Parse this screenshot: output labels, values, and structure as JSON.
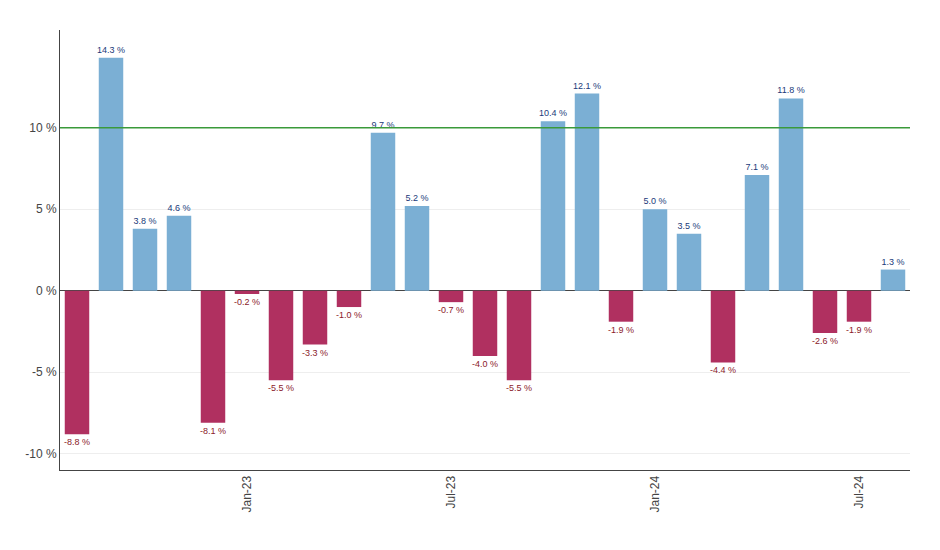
{
  "chart_data": {
    "type": "bar",
    "categories": [
      null,
      null,
      null,
      null,
      null,
      "Jan-23",
      null,
      null,
      null,
      null,
      null,
      "Jul-23",
      null,
      null,
      null,
      null,
      null,
      "Jan-24",
      null,
      null,
      null,
      null,
      null,
      "Jul-24",
      null
    ],
    "values": [
      -8.8,
      14.3,
      3.8,
      4.6,
      -8.1,
      -0.2,
      -5.5,
      -3.3,
      -1.0,
      9.7,
      5.2,
      -0.7,
      -4.0,
      -5.5,
      10.4,
      12.1,
      -1.9,
      5.0,
      3.5,
      -4.4,
      7.1,
      11.8,
      -2.6,
      -1.9,
      1.3
    ],
    "value_labels": [
      "-8.8 %",
      "14.3 %",
      "3.8 %",
      "4.6 %",
      "-8.1 %",
      "-0.2 %",
      "-5.5 %",
      "-3.3 %",
      "-1.0 %",
      "9.7 %",
      "5.2 %",
      "-0.7 %",
      "-4.0 %",
      "-5.5 %",
      "10.4 %",
      "12.1 %",
      "-1.9 %",
      "5.0 %",
      "3.5 %",
      "-4.4 %",
      "7.1 %",
      "11.8 %",
      "-2.6 %",
      "-1.9 %",
      "1.3 %"
    ],
    "colors": [
      "#b03060",
      "#7bafd4",
      "#7bafd4",
      "#7bafd4",
      "#b03060",
      "#b03060",
      "#b03060",
      "#b03060",
      "#b03060",
      "#7bafd4",
      "#7bafd4",
      "#b03060",
      "#b03060",
      "#b03060",
      "#7bafd4",
      "#7bafd4",
      "#b03060",
      "#7bafd4",
      "#7bafd4",
      "#b03060",
      "#7bafd4",
      "#7bafd4",
      "#b03060",
      "#b03060",
      "#7bafd4"
    ],
    "value_label_colors": [
      "#8b1a2a",
      "#1a3a7a",
      "#1a3a7a",
      "#1a3a7a",
      "#8b1a2a",
      "#8b1a2a",
      "#8b1a2a",
      "#8b1a2a",
      "#8b1a2a",
      "#1a3a7a",
      "#1a3a7a",
      "#8b1a2a",
      "#8b1a2a",
      "#8b1a2a",
      "#1a3a7a",
      "#1a3a7a",
      "#8b1a2a",
      "#1a3a7a",
      "#1a3a7a",
      "#8b1a2a",
      "#1a3a7a",
      "#1a3a7a",
      "#8b1a2a",
      "#8b1a2a",
      "#1a3a7a"
    ],
    "data_labels": true,
    "reference_line": {
      "value": 10.0,
      "color": "#3a9a3a"
    },
    "ylim": [
      -11.0,
      16.0
    ],
    "yticks": [
      {
        "value": -10,
        "label": "-10 %"
      },
      {
        "value": -5,
        "label": "-5 %"
      },
      {
        "value": 0,
        "label": "0 %"
      },
      {
        "value": 5,
        "label": "5 %"
      },
      {
        "value": 10,
        "label": "10 %"
      }
    ],
    "grid": true
  }
}
